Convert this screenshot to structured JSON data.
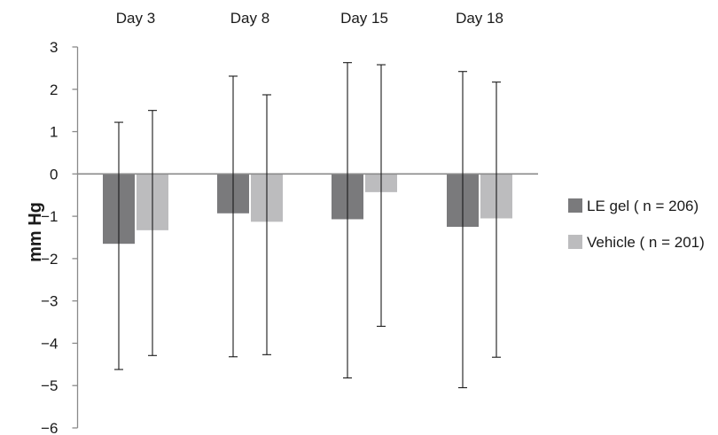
{
  "chart_data": {
    "type": "bar",
    "title": "",
    "xlabel": "",
    "ylabel": "mm Hg",
    "ylim": [
      -6,
      3
    ],
    "yticks": [
      3,
      2,
      1,
      0,
      -1,
      -2,
      -3,
      -4,
      -5,
      -6
    ],
    "ytick_labels": [
      "3",
      "2",
      "1",
      "0",
      "−1",
      "−2",
      "−3",
      "−4",
      "−5",
      "−6"
    ],
    "categories": [
      "Day 3",
      "Day 8",
      "Day 15",
      "Day 18"
    ],
    "category_label_position": "top",
    "grid": false,
    "legend_position": "right",
    "series": [
      {
        "name": "LE gel ( n = 206)",
        "color": "#7a7a7c",
        "values": [
          -1.65,
          -0.93,
          -1.07,
          -1.25
        ],
        "error_low": [
          -4.62,
          -4.32,
          -4.82,
          -5.05
        ],
        "error_high": [
          1.22,
          2.31,
          2.63,
          2.42
        ]
      },
      {
        "name": "Vehicle ( n = 201)",
        "color": "#bcbcbe",
        "values": [
          -1.33,
          -1.13,
          -0.43,
          -1.05
        ],
        "error_low": [
          -4.29,
          -4.27,
          -3.6,
          -4.33
        ],
        "error_high": [
          1.5,
          1.87,
          2.58,
          2.17
        ]
      }
    ]
  }
}
